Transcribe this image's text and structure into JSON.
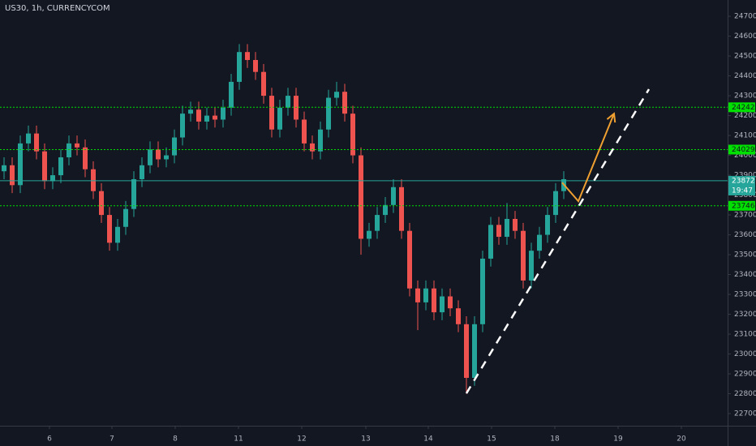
{
  "chart_data": {
    "type": "candlestick",
    "title": "US30, 1h, CURRENCYCOM",
    "up_color": "#26a69a",
    "down_color": "#ef5350",
    "x": [
      0,
      1,
      2,
      3,
      4,
      5,
      6,
      7,
      8,
      9,
      10,
      11,
      12,
      13,
      14,
      15,
      16,
      17,
      18,
      19,
      20,
      21,
      22,
      23,
      24,
      25,
      26,
      27,
      28,
      29,
      30,
      31,
      32,
      33,
      34,
      35,
      36,
      37,
      38,
      39,
      40,
      41,
      42,
      43,
      44,
      45,
      46,
      47,
      48,
      49,
      50,
      51,
      52,
      53,
      54,
      55,
      56,
      57,
      58,
      59,
      60,
      61,
      62,
      63,
      64,
      65,
      66,
      67,
      68,
      69
    ],
    "open": [
      23920,
      23950,
      23850,
      24060,
      24110,
      24020,
      23870,
      23900,
      23990,
      24060,
      24040,
      23930,
      23820,
      23700,
      23560,
      23640,
      23730,
      23880,
      23950,
      24030,
      23980,
      24000,
      24090,
      24210,
      24230,
      24170,
      24200,
      24180,
      24240,
      24370,
      24520,
      24480,
      24420,
      24300,
      24130,
      24240,
      24300,
      24180,
      24060,
      24020,
      24130,
      24290,
      24320,
      24210,
      24000,
      23580,
      23620,
      23700,
      23750,
      23840,
      23620,
      23330,
      23260,
      23330,
      23210,
      23290,
      23230,
      23150,
      22880,
      23150,
      23480,
      23650,
      23590,
      23680,
      23620,
      23370,
      23520,
      23600,
      23700,
      23820
    ],
    "high": [
      23990,
      23990,
      24100,
      24150,
      24150,
      24060,
      23940,
      24030,
      24100,
      24100,
      24080,
      23970,
      23860,
      23740,
      23680,
      23770,
      23920,
      23990,
      24070,
      24070,
      24040,
      24130,
      24250,
      24270,
      24270,
      24240,
      24240,
      24280,
      24410,
      24560,
      24560,
      24520,
      24460,
      24340,
      24280,
      24340,
      24340,
      24220,
      24100,
      24170,
      24330,
      24370,
      24360,
      24250,
      24040,
      23660,
      23740,
      23790,
      23880,
      23880,
      23660,
      23370,
      23370,
      23370,
      23330,
      23330,
      23270,
      23190,
      23190,
      23520,
      23690,
      23690,
      23760,
      23720,
      23660,
      23560,
      23640,
      23740,
      23860,
      23920
    ],
    "low": [
      23880,
      23810,
      23810,
      24020,
      23980,
      23830,
      23830,
      23860,
      23950,
      24000,
      23890,
      23780,
      23660,
      23520,
      23520,
      23600,
      23690,
      23840,
      23910,
      23940,
      23940,
      23960,
      24050,
      24170,
      24130,
      24130,
      24140,
      24140,
      24200,
      24330,
      24440,
      24380,
      24260,
      24090,
      24090,
      24200,
      24140,
      24020,
      23980,
      23980,
      24090,
      24250,
      24170,
      23960,
      23500,
      23540,
      23580,
      23660,
      23710,
      23580,
      23290,
      23120,
      23220,
      23170,
      23170,
      23190,
      23110,
      22800,
      22840,
      23110,
      23440,
      23550,
      23550,
      23580,
      23330,
      23330,
      23480,
      23560,
      23660,
      23780
    ],
    "close": [
      23950,
      23850,
      24060,
      24110,
      24020,
      23870,
      23900,
      23990,
      24060,
      24040,
      23930,
      23820,
      23700,
      23560,
      23640,
      23730,
      23880,
      23950,
      24030,
      23980,
      24000,
      24090,
      24210,
      24230,
      24170,
      24200,
      24180,
      24240,
      24370,
      24520,
      24480,
      24420,
      24300,
      24130,
      24240,
      24300,
      24180,
      24060,
      24020,
      24130,
      24290,
      24320,
      24210,
      24000,
      23580,
      23620,
      23700,
      23750,
      23840,
      23620,
      23330,
      23260,
      23330,
      23210,
      23290,
      23230,
      23150,
      22880,
      23150,
      23480,
      23650,
      23590,
      23680,
      23620,
      23370,
      23520,
      23600,
      23700,
      23820,
      23880
    ],
    "xlim": [
      -0.5,
      89.2
    ],
    "xticks": [
      {
        "value": 5.6,
        "label": "6"
      },
      {
        "value": 13.3,
        "label": "7"
      },
      {
        "value": 21.1,
        "label": "8"
      },
      {
        "value": 28.9,
        "label": "11"
      },
      {
        "value": 36.7,
        "label": "12"
      },
      {
        "value": 44.6,
        "label": "13"
      },
      {
        "value": 52.3,
        "label": "14"
      },
      {
        "value": 60.1,
        "label": "15"
      },
      {
        "value": 67.9,
        "label": "18"
      },
      {
        "value": 75.7,
        "label": "19"
      },
      {
        "value": 83.5,
        "label": "20"
      }
    ],
    "ylim": [
      22639,
      24782
    ],
    "yticks": [
      22700,
      22800,
      22900,
      23000,
      23100,
      23200,
      23300,
      23400,
      23500,
      23600,
      23700,
      23800,
      23900,
      24000,
      24100,
      24200,
      24300,
      24400,
      24500,
      24600,
      24700
    ],
    "hlines": [
      {
        "value": 24242,
        "color": "#00e000",
        "style": "dotted"
      },
      {
        "value": 24029,
        "color": "#00e000",
        "style": "dotted"
      },
      {
        "value": 23746,
        "color": "#00e000",
        "style": "dotted"
      },
      {
        "value": 23872,
        "color": "#26a69a",
        "style": "solid"
      }
    ],
    "countdown": "19:47",
    "trendline": {
      "x": [
        57,
        79.5
      ],
      "y": [
        22802,
        24333
      ],
      "color": "#ffffff"
    },
    "arrow": {
      "x": [
        68.8,
        70.8,
        75.2
      ],
      "y": [
        23863,
        23769,
        24210
      ],
      "color": "#f0a030"
    }
  }
}
